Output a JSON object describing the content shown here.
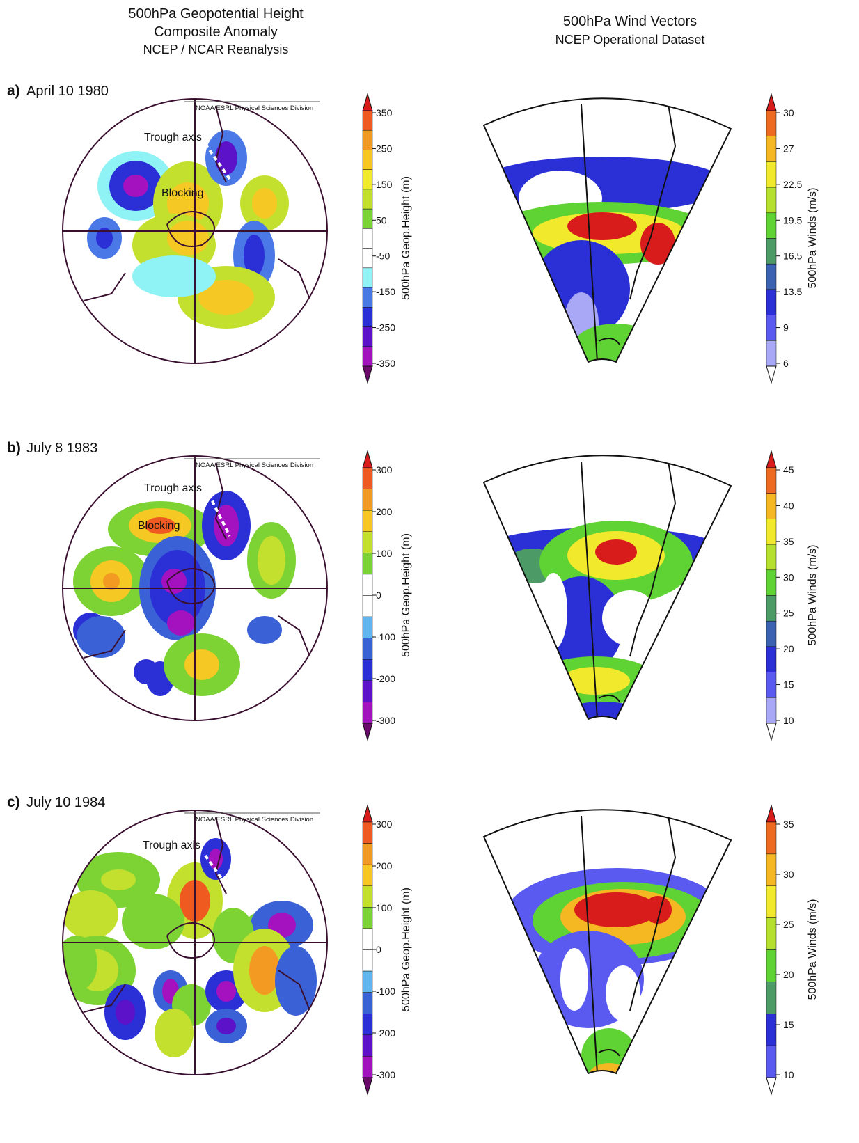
{
  "header": {
    "left": [
      "500hPa Geopotential Height",
      "Composite Anomaly",
      "NCEP / NCAR Reanalysis"
    ],
    "right": [
      "500hPa Wind Vectors",
      "NCEP Operational Dataset"
    ]
  },
  "panels": [
    {
      "letter": "a)",
      "date": "April 10 1980",
      "credit": "NOAA/ESRL Physical Sciences Division",
      "annotations": [
        "Trough axis",
        "Blocking"
      ],
      "height_colorbar": {
        "label": "500hPa Geop.Height (m)",
        "ticks": [
          350,
          250,
          150,
          50,
          -50,
          -150,
          -250,
          -350
        ],
        "colors": [
          "#d81c1c",
          "#ee5a20",
          "#f39a22",
          "#f5c823",
          "#f1ea2c",
          "#c4e02e",
          "#7dd234",
          "#ffffff",
          "#ffffff",
          "#8ff2f4",
          "#4a78e6",
          "#2b2fd6",
          "#5b12c8",
          "#a412c0",
          "#6a0a6a"
        ]
      },
      "wind_colorbar": {
        "label": "500hPa Winds (m/s)",
        "ticks": [
          30,
          27,
          22.5,
          19.5,
          16.5,
          13.5,
          9,
          6
        ],
        "colors": [
          "#d81c1c",
          "#ee6a20",
          "#f5b823",
          "#f1ea2c",
          "#b6e02e",
          "#5fd234",
          "#4c9a66",
          "#3a62b0",
          "#2b2fd6",
          "#5a5af0",
          "#a8a8f6",
          "#ffffff"
        ]
      }
    },
    {
      "letter": "b)",
      "date": "July 8 1983",
      "credit": "NOAA/ESRL Physical Sciences Division",
      "annotations": [
        "Trough axis",
        "Blocking"
      ],
      "height_colorbar": {
        "label": "500hPa Geop.Height (m)",
        "ticks": [
          300,
          200,
          100,
          0,
          -100,
          -200,
          -300
        ],
        "colors": [
          "#d81c1c",
          "#ee5a20",
          "#f39a22",
          "#f5c823",
          "#c4e02e",
          "#7dd234",
          "#ffffff",
          "#ffffff",
          "#62b6ee",
          "#3a62d6",
          "#2b2fd6",
          "#5b12c8",
          "#a412c0",
          "#6a0a6a"
        ]
      },
      "wind_colorbar": {
        "label": "500hPa Winds (m/s)",
        "ticks": [
          45,
          40,
          35,
          30,
          25,
          20,
          15,
          10
        ],
        "colors": [
          "#d81c1c",
          "#ee6a20",
          "#f5b823",
          "#f1ea2c",
          "#b6e02e",
          "#5fd234",
          "#4c9a66",
          "#3a62b0",
          "#2b2fd6",
          "#5a5af0",
          "#a8a8f6",
          "#ffffff"
        ]
      }
    },
    {
      "letter": "c)",
      "date": "July 10 1984",
      "credit": "NOAA/ESRL Physical Sciences Division",
      "annotations": [
        "Trough axis"
      ],
      "height_colorbar": {
        "label": "500hPa Geop.Height (m)",
        "ticks": [
          300,
          200,
          100,
          0,
          -100,
          -200,
          -300
        ],
        "colors": [
          "#d81c1c",
          "#ee5a20",
          "#f39a22",
          "#f5c823",
          "#c4e02e",
          "#7dd234",
          "#ffffff",
          "#ffffff",
          "#62b6ee",
          "#3a62d6",
          "#2b2fd6",
          "#5b12c8",
          "#a412c0",
          "#6a0a6a"
        ]
      },
      "wind_colorbar": {
        "label": "500hPa Winds (m/s)",
        "ticks": [
          35,
          30,
          25,
          20,
          15,
          10
        ],
        "colors": [
          "#d81c1c",
          "#ee6a20",
          "#f5b823",
          "#f1ea2c",
          "#b6e02e",
          "#5fd234",
          "#4c9a66",
          "#2b2fd6",
          "#5a5af0",
          "#ffffff"
        ]
      }
    }
  ]
}
